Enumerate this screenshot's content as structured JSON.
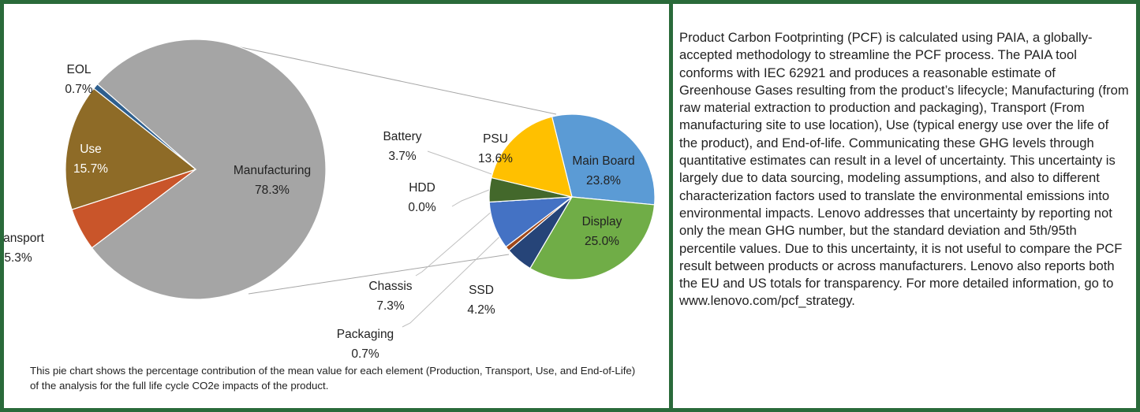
{
  "chart_data": [
    {
      "type": "pie",
      "categories": [
        "Manufacturing",
        "Transport",
        "Use",
        "EOL"
      ],
      "values": [
        78.3,
        5.3,
        15.7,
        0.7
      ],
      "value_labels": [
        "78.3%",
        "5.3%",
        "15.7%",
        "0.7%"
      ],
      "colors": [
        "#a5a5a5",
        "#c9552a",
        "#8e6b27",
        "#2e5f8e"
      ]
    },
    {
      "type": "pie",
      "categories": [
        "Main Board",
        "Display",
        "SSD",
        "Packaging",
        "Chassis",
        "HDD",
        "Battery",
        "PSU"
      ],
      "values": [
        23.8,
        25.0,
        4.2,
        0.7,
        7.3,
        0.0,
        3.7,
        13.6
      ],
      "value_labels": [
        "23.8%",
        "25.0%",
        "4.2%",
        "0.7%",
        "7.3%",
        "0.0%",
        "3.7%",
        "13.6%"
      ],
      "colors": [
        "#5b9bd5",
        "#70ad47",
        "#264478",
        "#a0481a",
        "#4472c4",
        "#2f5597",
        "#43682b",
        "#ffc000"
      ]
    }
  ],
  "caption": "This pie chart shows the percentage contribution of the mean value for each element (Production, Transport, Use, and End-of-Life) of the analysis for the full life cycle CO2e impacts of the product.",
  "text": "Product Carbon Footprinting (PCF) is calculated using PAIA, a globally-accepted methodology to streamline the PCF process. The PAIA tool conforms with IEC 62921 and produces a reasonable estimate of Greenhouse Gases resulting from the product’s lifecycle; Manufacturing (from raw material extraction to production and packaging), Transport (From manufacturing site to use location), Use (typical energy use over the life of the product), and End-of-life. Communicating these GHG levels through quantitative estimates can result in a level of uncertainty. This uncertainty is largely due to data sourcing, modeling assumptions, and also to different characterization factors used to translate the environmental emissions into environmental impacts. Lenovo addresses that uncertainty by reporting not only the mean GHG number, but the standard deviation and 5th/95th percentile values. Due to this uncertainty, it is not useful to compare the PCF result between products or across manufacturers. Lenovo also reports both the EU and US totals for transparency. For more detailed information, go to www.lenovo.com/pcf_strategy."
}
